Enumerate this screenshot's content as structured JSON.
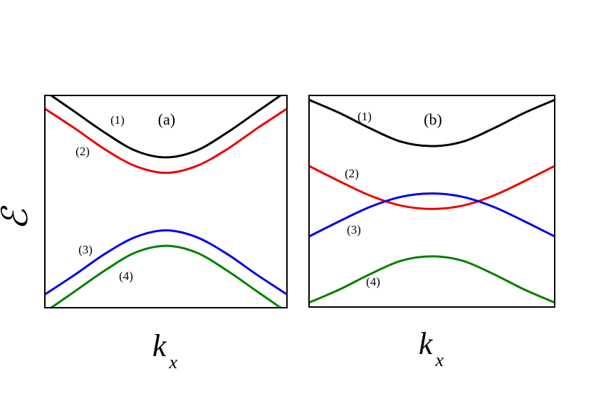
{
  "ylabel": "ℰ",
  "xlabel": {
    "main": "k",
    "sub": "x"
  },
  "colors": {
    "band1": "#000000",
    "band2": "#ee0000",
    "band3": "#0000ee",
    "band4": "#008000"
  },
  "panels": [
    {
      "label": "(a)",
      "curve_labels": [
        "(1)",
        "(2)",
        "(3)",
        "(4)"
      ]
    },
    {
      "label": "(b)",
      "curve_labels": [
        "(1)",
        "(2)",
        "(3)",
        "(4)"
      ]
    }
  ],
  "chart_data": [
    {
      "type": "line",
      "title": "(a)",
      "xlabel": "k_x",
      "ylabel": "ℰ",
      "x": [
        -1,
        -0.75,
        -0.5,
        -0.25,
        0,
        0.25,
        0.5,
        0.75,
        1
      ],
      "series": [
        {
          "name": "(1)",
          "color": "#000000",
          "values": [
            1.0,
            0.81,
            0.62,
            0.46,
            0.4,
            0.46,
            0.62,
            0.81,
            1.0
          ]
        },
        {
          "name": "(2)",
          "color": "#ee0000",
          "values": [
            0.84,
            0.66,
            0.47,
            0.32,
            0.26,
            0.32,
            0.47,
            0.66,
            0.84
          ]
        },
        {
          "name": "(3)",
          "color": "#0000ee",
          "values": [
            -0.84,
            -0.66,
            -0.47,
            -0.32,
            -0.26,
            -0.32,
            -0.47,
            -0.66,
            -0.84
          ]
        },
        {
          "name": "(4)",
          "color": "#008000",
          "values": [
            -1.0,
            -0.81,
            -0.62,
            -0.46,
            -0.4,
            -0.46,
            -0.62,
            -0.81,
            -1.0
          ]
        }
      ],
      "ylim": [
        -0.96,
        0.96
      ],
      "xlim": [
        -1,
        1
      ]
    },
    {
      "type": "line",
      "title": "(b)",
      "xlabel": "k_x",
      "ylabel": "ℰ",
      "x": [
        -1,
        -0.75,
        -0.5,
        -0.25,
        0,
        0.25,
        0.5,
        0.75,
        1
      ],
      "series": [
        {
          "name": "(1)",
          "color": "#000000",
          "values": [
            0.92,
            0.8,
            0.66,
            0.54,
            0.5,
            0.54,
            0.66,
            0.8,
            0.92
          ]
        },
        {
          "name": "(2)",
          "color": "#ee0000",
          "values": [
            0.32,
            0.18,
            0.05,
            -0.04,
            -0.07,
            -0.04,
            0.05,
            0.18,
            0.32
          ]
        },
        {
          "name": "(3)",
          "color": "#0000ee",
          "values": [
            -0.32,
            -0.18,
            -0.05,
            0.04,
            0.07,
            0.04,
            -0.05,
            -0.18,
            -0.32
          ]
        },
        {
          "name": "(4)",
          "color": "#008000",
          "values": [
            -0.92,
            -0.8,
            -0.66,
            -0.54,
            -0.5,
            -0.54,
            -0.66,
            -0.8,
            -0.92
          ]
        }
      ],
      "ylim": [
        -0.96,
        0.96
      ],
      "xlim": [
        -1,
        1
      ]
    }
  ]
}
